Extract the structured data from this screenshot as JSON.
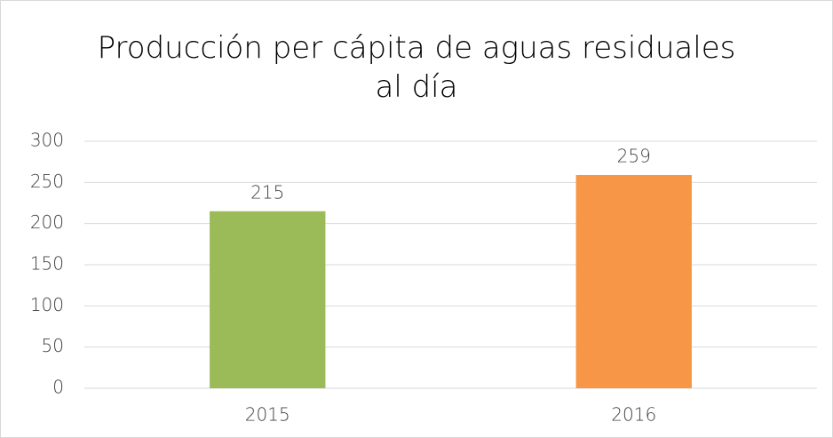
{
  "chart_data": {
    "type": "bar",
    "title": "Producción per cápita de aguas residuales al día",
    "categories": [
      "2015",
      "2016"
    ],
    "values": [
      215,
      259
    ],
    "colors": [
      "#9bbb59",
      "#f79646"
    ],
    "ylim": [
      0,
      300
    ],
    "yticks": [
      0,
      50,
      100,
      150,
      200,
      250,
      300
    ],
    "grid": true
  }
}
